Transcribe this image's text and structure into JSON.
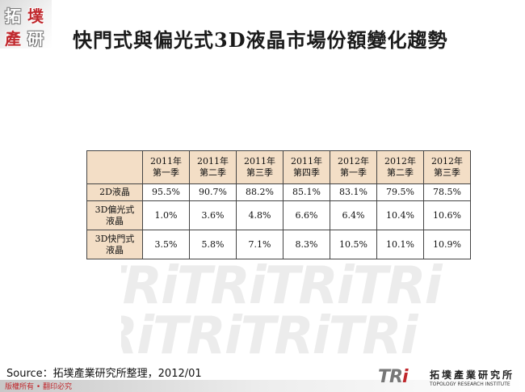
{
  "logo": {
    "chars": [
      "拓",
      "墣",
      "產",
      "研"
    ]
  },
  "title": "快門式與偏光式3D液晶市場份額變化趨勢",
  "table": {
    "headers": [
      [
        "2011年",
        "第一季"
      ],
      [
        "2011年",
        "第二季"
      ],
      [
        "2011年",
        "第三季"
      ],
      [
        "2011年",
        "第四季"
      ],
      [
        "2012年",
        "第一季"
      ],
      [
        "2012年",
        "第二季"
      ],
      [
        "2012年",
        "第三季"
      ]
    ],
    "rows": [
      {
        "label": [
          "2D液晶"
        ],
        "values": [
          "95.5%",
          "90.7%",
          "88.2%",
          "85.1%",
          "83.1%",
          "79.5%",
          "78.5%"
        ]
      },
      {
        "label": [
          "3D偏光式",
          "液晶"
        ],
        "values": [
          "1.0%",
          "3.6%",
          "4.8%",
          "6.6%",
          "6.4%",
          "10.4%",
          "10.6%"
        ]
      },
      {
        "label": [
          "3D快門式",
          "液晶"
        ],
        "values": [
          "3.5%",
          "5.8%",
          "7.1%",
          "8.3%",
          "10.5%",
          "10.1%",
          "10.9%"
        ]
      }
    ]
  },
  "source": "Source：拓墣產業研究所整理，2012/01",
  "copyright": "版權所有 • 翻印必究",
  "brand": {
    "tri_a": "TR",
    "tri_b": "i",
    "name_cn": "拓墣產業研究所",
    "name_en": "TOPOLOGY RESEARCH INSTITUTE"
  },
  "colors": {
    "header_fill": "#f3dec6",
    "accent_red": "#c0282d"
  }
}
